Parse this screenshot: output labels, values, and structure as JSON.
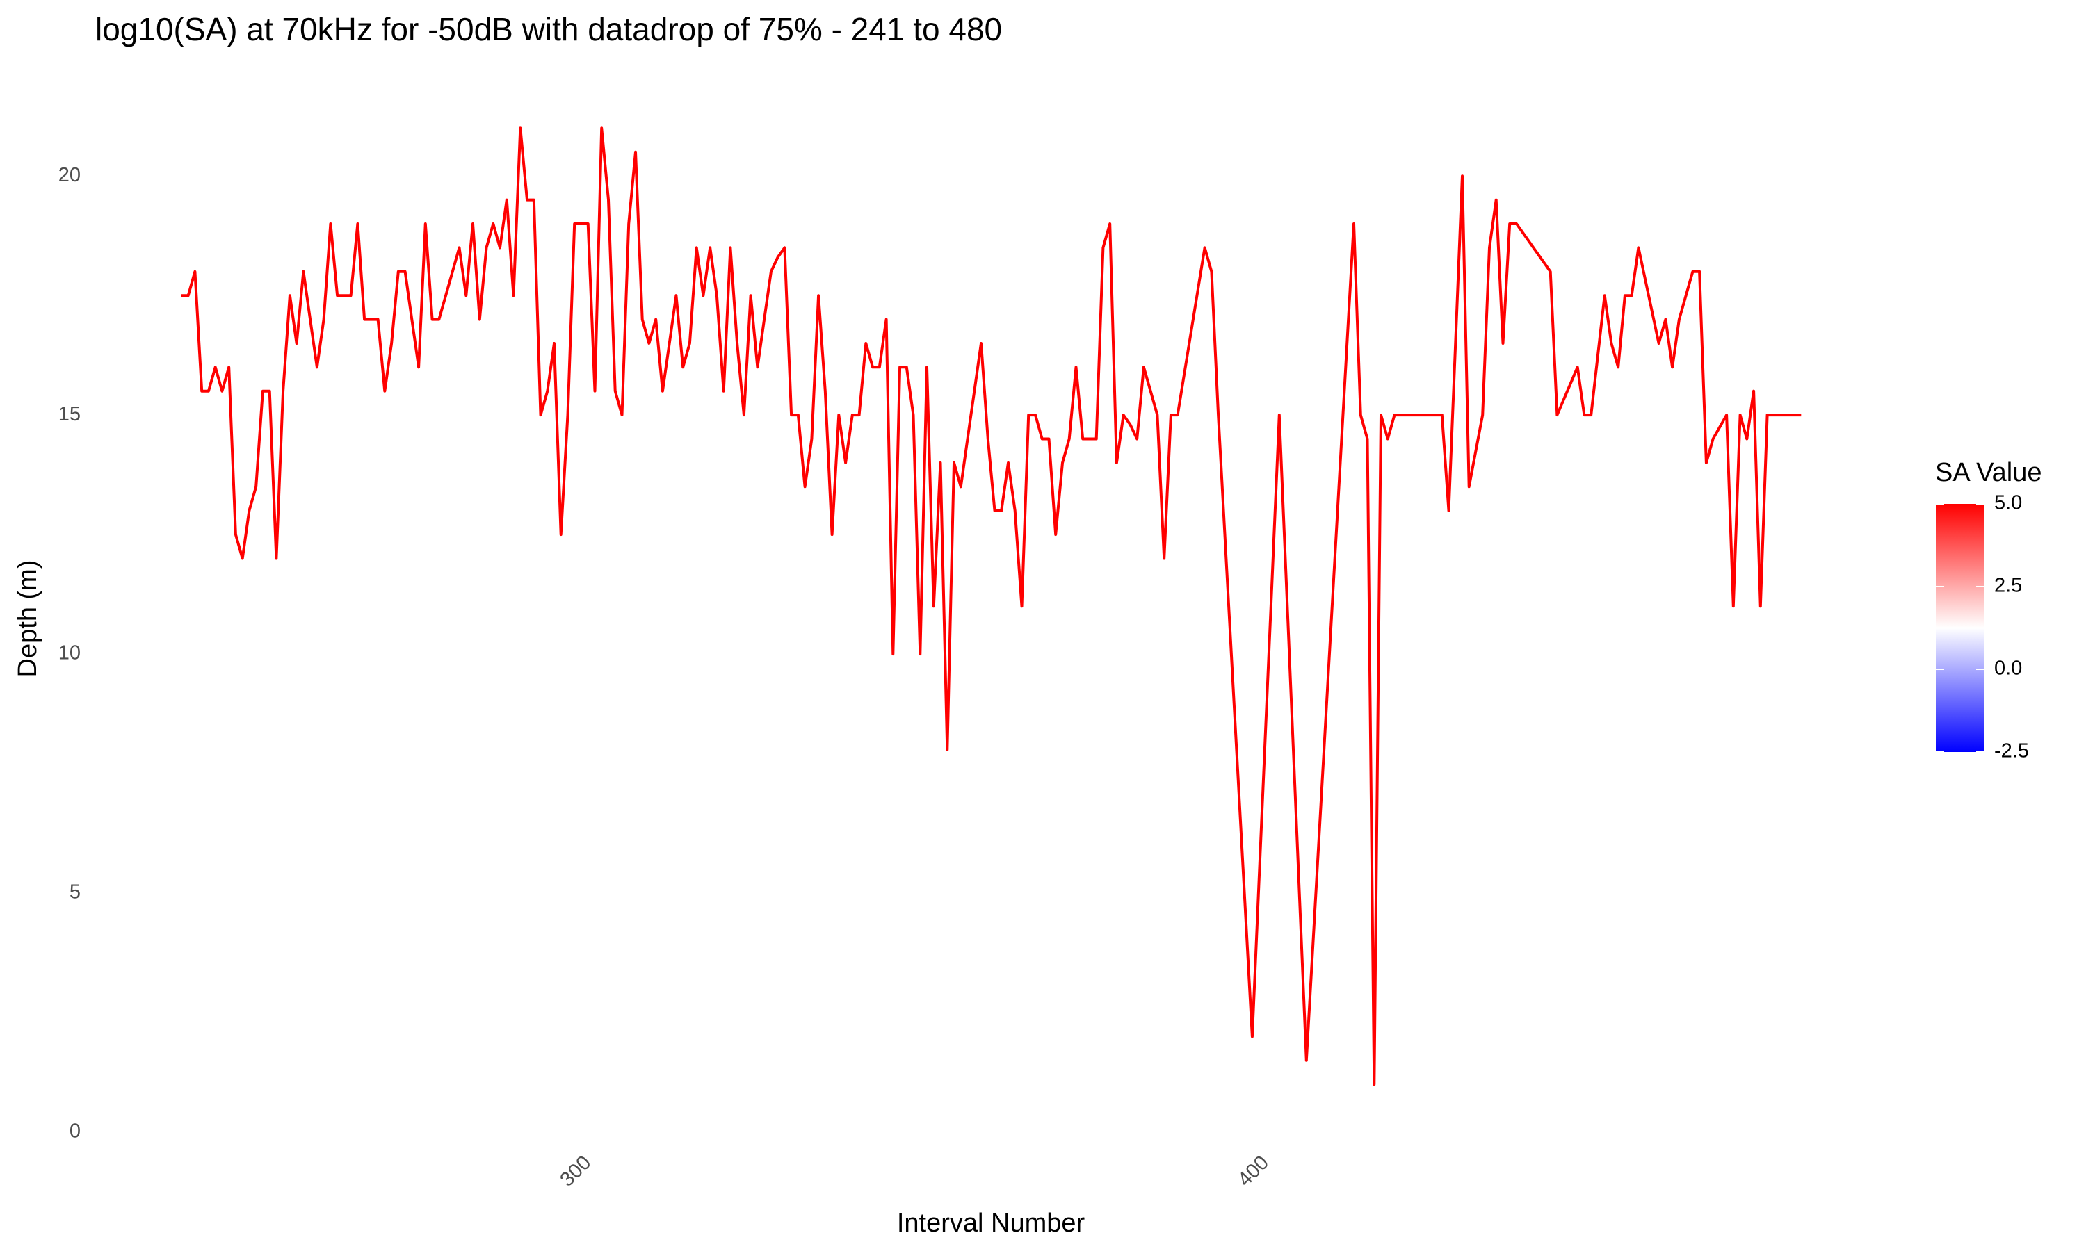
{
  "chart_data": {
    "type": "line",
    "title": "log10(SA) at 70kHz for -50dB with datadrop of 75% - 241 to 480",
    "x_label": "Interval Number",
    "y_label": "Depth (m)",
    "xlim": [
      229,
      493
    ],
    "ylim": [
      0,
      21.5
    ],
    "xticks": [
      300,
      400
    ],
    "yticks": [
      0,
      5,
      10,
      15,
      20
    ],
    "grid": false,
    "line": {
      "color": "#ff0000",
      "x": [
        241,
        242,
        243,
        244,
        245,
        246,
        247,
        248,
        249,
        250,
        251,
        252,
        253,
        254,
        255,
        256,
        257,
        258,
        259,
        260,
        261,
        262,
        263,
        264,
        265,
        266,
        267,
        268,
        269,
        270,
        271,
        272,
        273,
        274,
        275,
        276,
        277,
        278,
        279,
        280,
        281,
        282,
        283,
        284,
        285,
        286,
        287,
        288,
        289,
        290,
        291,
        292,
        293,
        294,
        295,
        296,
        297,
        298,
        299,
        300,
        301,
        302,
        303,
        304,
        305,
        306,
        307,
        308,
        309,
        310,
        311,
        312,
        313,
        314,
        315,
        316,
        317,
        318,
        319,
        320,
        321,
        322,
        323,
        324,
        325,
        326,
        327,
        328,
        329,
        330,
        331,
        332,
        333,
        334,
        335,
        336,
        337,
        338,
        339,
        340,
        341,
        342,
        343,
        344,
        345,
        346,
        347,
        348,
        349,
        350,
        351,
        352,
        353,
        354,
        355,
        356,
        357,
        358,
        359,
        360,
        361,
        362,
        363,
        364,
        365,
        366,
        367,
        368,
        369,
        370,
        371,
        372,
        373,
        374,
        375,
        376,
        377,
        378,
        379,
        380,
        381,
        382,
        383,
        384,
        385,
        386,
        387,
        388,
        392,
        393,
        394,
        399,
        403,
        407,
        414,
        415,
        416,
        417,
        418,
        419,
        420,
        427,
        428,
        430,
        431,
        433,
        434,
        435,
        436,
        437,
        438,
        443,
        444,
        447,
        448,
        449,
        451,
        452,
        453,
        454,
        455,
        456,
        459,
        460,
        461,
        462,
        464,
        465,
        466,
        467,
        469,
        470,
        471,
        472,
        473,
        474,
        475,
        476,
        480
      ],
      "y": [
        17.5,
        17.5,
        18,
        15.5,
        15.5,
        16,
        15.5,
        16,
        12.5,
        12,
        13,
        13.5,
        15.5,
        15.5,
        12,
        15.5,
        17.5,
        16.5,
        18,
        17,
        16,
        17,
        19,
        17.5,
        17.5,
        17.5,
        19,
        17,
        17,
        17,
        15.5,
        16.5,
        18,
        18,
        17,
        16,
        19,
        17,
        17,
        17.5,
        18,
        18.5,
        17.5,
        19,
        17,
        18.5,
        19,
        18.5,
        19.5,
        17.5,
        21,
        19.5,
        19.5,
        15,
        15.5,
        16.5,
        12.5,
        15,
        19,
        19,
        19,
        15.5,
        21,
        19.5,
        15.5,
        15,
        19,
        20.5,
        17,
        16.5,
        17,
        15.5,
        16.5,
        17.5,
        16,
        16.5,
        18.5,
        17.5,
        18.5,
        17.5,
        15.5,
        18.5,
        16.5,
        15,
        17.5,
        16,
        17,
        18,
        18.3,
        18.5,
        15,
        15,
        13.5,
        14.5,
        17.5,
        15.5,
        12.5,
        15,
        14,
        15,
        15,
        16.5,
        16,
        16,
        17,
        10,
        16,
        16,
        15,
        10,
        16,
        11,
        14,
        8,
        14,
        13.5,
        14.5,
        15.5,
        16.5,
        14.5,
        13,
        13,
        14,
        13,
        11,
        15,
        15,
        14.5,
        14.5,
        12.5,
        14,
        14.5,
        16,
        14.5,
        14.5,
        14.5,
        18.5,
        19,
        14,
        15,
        14.8,
        14.5,
        16,
        15.5,
        15,
        12,
        15,
        15,
        18.5,
        18,
        15,
        2,
        15,
        1.5,
        19,
        15,
        14.5,
        1,
        15,
        14.5,
        15,
        15,
        13,
        20,
        13.5,
        15,
        18.5,
        19.5,
        16.5,
        19,
        19,
        18,
        15,
        16,
        15,
        15,
        17.5,
        16.5,
        16,
        17.5,
        17.5,
        18.5,
        16.5,
        17,
        16,
        17,
        18,
        18,
        14,
        14.5,
        15,
        11,
        15,
        14.5,
        15.5,
        11,
        15,
        15,
        15
      ]
    },
    "colorbar": {
      "title": "SA Value",
      "lim": [
        -2.5,
        5
      ],
      "ticks": [
        {
          "value": -2.5,
          "label": "-2.5"
        },
        {
          "value": 0,
          "label": "0.0"
        },
        {
          "value": 2.5,
          "label": "2.5"
        },
        {
          "value": 5,
          "label": "5.0"
        }
      ],
      "colors": [
        "#0000ff",
        "#ffffff",
        "#ff0000"
      ]
    }
  }
}
